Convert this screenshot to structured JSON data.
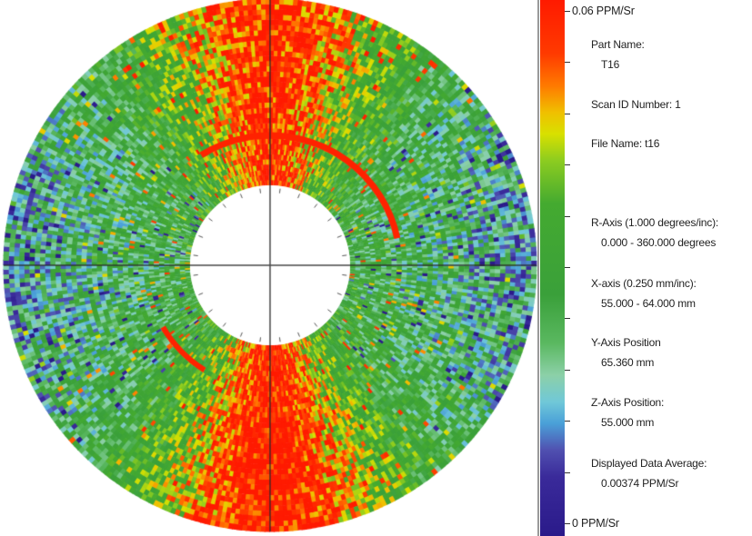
{
  "chart_data": {
    "type": "heatmap",
    "subtype": "polar-scan-map",
    "title": "",
    "colorbar": {
      "max_label": "0.06 PPM/Sr",
      "min_label": "0 PPM/Sr",
      "range": [
        0,
        0.06
      ],
      "units": "PPM/Sr",
      "tick_count": 11,
      "stops": [
        {
          "pos": 0.0,
          "color": "#ff1a00"
        },
        {
          "pos": 0.1,
          "color": "#ff3a00"
        },
        {
          "pos": 0.16,
          "color": "#ff7a00"
        },
        {
          "pos": 0.21,
          "color": "#f0c000"
        },
        {
          "pos": 0.25,
          "color": "#d8e000"
        },
        {
          "pos": 0.3,
          "color": "#8ccc20"
        },
        {
          "pos": 0.38,
          "color": "#44aa30"
        },
        {
          "pos": 0.55,
          "color": "#3aa03a"
        },
        {
          "pos": 0.64,
          "color": "#5ab860"
        },
        {
          "pos": 0.7,
          "color": "#8cd0a8"
        },
        {
          "pos": 0.75,
          "color": "#70c8d8"
        },
        {
          "pos": 0.79,
          "color": "#4aa0d8"
        },
        {
          "pos": 0.84,
          "color": "#5050b0"
        },
        {
          "pos": 0.89,
          "color": "#3a2a9a"
        },
        {
          "pos": 1.0,
          "color": "#2a1a8a"
        }
      ]
    },
    "polar": {
      "center": [
        297,
        292
      ],
      "inner_radius": 88,
      "outer_radius": 293,
      "r_axis": "0.000 - 360.000 degrees",
      "x_axis": "55.000 - 64.000 mm",
      "crosshair": true,
      "angular_ticks": 24,
      "features": [
        {
          "type": "arc",
          "color": "#ff2200",
          "radius": 143,
          "start_deg": -122,
          "end_deg": -12,
          "width": 7
        },
        {
          "type": "arc",
          "color": "#ff2200",
          "radius": 136,
          "start_deg": 122,
          "end_deg": 150,
          "width": 6
        }
      ],
      "regions": [
        {
          "name": "top-hot-band",
          "center_deg": -90,
          "spread_deg": 22,
          "level": "high"
        },
        {
          "name": "bottom-hot-band",
          "center_deg": 90,
          "spread_deg": 28,
          "level": "high"
        },
        {
          "name": "left-cool",
          "center_deg": 180,
          "level": "low"
        },
        {
          "name": "right-cool",
          "center_deg": 0,
          "level": "low"
        }
      ]
    },
    "data_average": "0.00374 PPM/Sr"
  },
  "info": {
    "part_name_label": "Part Name:",
    "part_name_value": "T16",
    "scan_id_label": "Scan ID Number: 1",
    "file_name_label": "File Name: t16",
    "r_axis_label": "R-Axis (1.000 degrees/inc):",
    "r_axis_value": "0.000 - 360.000 degrees",
    "x_axis_label": "X-axis (0.250 mm/inc):",
    "x_axis_value": "55.000 - 64.000 mm",
    "y_axis_label": "Y-Axis Position",
    "y_axis_value": "65.360 mm",
    "z_axis_label": "Z-Axis Position:",
    "z_axis_value": "55.000 mm",
    "average_label": "Displayed Data Average:",
    "average_value": "0.00374 PPM/Sr",
    "scale_max": "0.06 PPM/Sr",
    "scale_min": "0 PPM/Sr"
  }
}
